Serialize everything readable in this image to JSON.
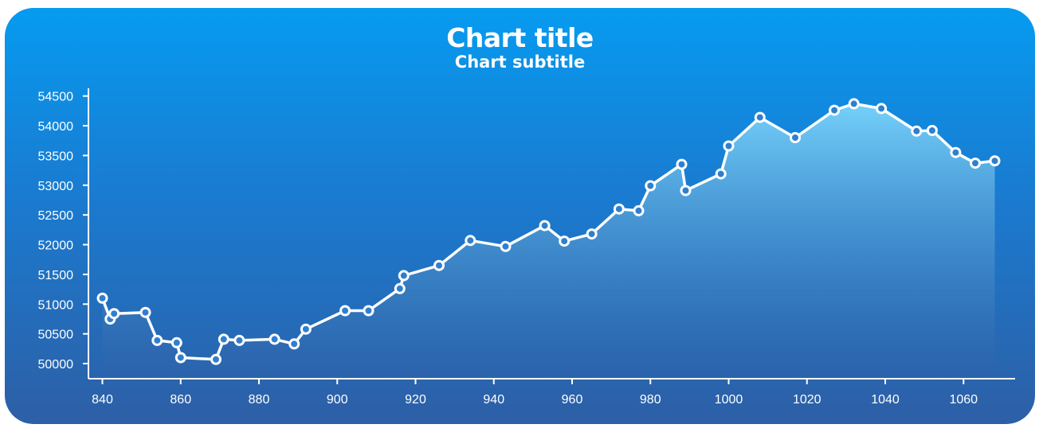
{
  "chart_data": {
    "type": "area",
    "title": "Chart title",
    "subtitle": "Chart subtitle",
    "xlabel": "",
    "ylabel": "",
    "xlim": [
      835,
      1070
    ],
    "ylim": [
      49850,
      54650
    ],
    "x_ticks": [
      840,
      860,
      880,
      900,
      920,
      940,
      960,
      980,
      1000,
      1020,
      1040,
      1060
    ],
    "y_ticks": [
      50000,
      50500,
      51000,
      51500,
      52000,
      52500,
      53000,
      53500,
      54000,
      54500
    ],
    "grid": false,
    "legend": "none",
    "series": [
      {
        "x": [
          840,
          842,
          843,
          851,
          854,
          859,
          860,
          869,
          871,
          875,
          884,
          889,
          892,
          902,
          908,
          916,
          917,
          926,
          934,
          943,
          953,
          958,
          965,
          972,
          977,
          980,
          988,
          989,
          998,
          1000,
          1008,
          1017,
          1027,
          1032,
          1039,
          1048,
          1052,
          1058,
          1063,
          1068
        ],
        "y": [
          51100,
          50750,
          50840,
          50860,
          50390,
          50350,
          50100,
          50070,
          50410,
          50390,
          50410,
          50330,
          50580,
          50890,
          50890,
          51260,
          51480,
          51650,
          52070,
          51970,
          52320,
          52060,
          52180,
          52600,
          52570,
          52990,
          53350,
          52910,
          53190,
          53660,
          54140,
          53800,
          54260,
          54370,
          54290,
          53910,
          53920,
          53550,
          53370,
          53410
        ]
      }
    ],
    "colors": {
      "background_top": "#069bf0",
      "background_bottom": "#2d5fa6",
      "line": "#ffffff",
      "area_top": "#7ad4fb",
      "area_bottom": "#2d5fa6"
    }
  }
}
